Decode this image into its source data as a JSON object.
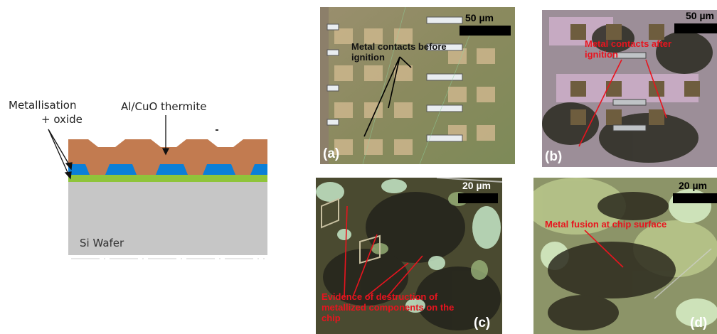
{
  "schematic": {
    "labels": {
      "metallisation": "Metallisation",
      "oxide": "+ oxide",
      "thermite": "Al/CuO thermite",
      "wafer": "Si Wafer"
    },
    "colors": {
      "thermite": "#c27b50",
      "metallisation": "#0b7fd8",
      "oxide": "#8fc43a",
      "wafer": "#c6c6c6"
    }
  },
  "panels": {
    "a": {
      "letter": "(a)",
      "scale": "50 µm",
      "annotation": "Metal contacts before ignition"
    },
    "b": {
      "letter": "(b)",
      "scale": "50 µm",
      "annotation": "Metal contacts after ignition"
    },
    "c": {
      "letter": "(c)",
      "scale": "20 µm",
      "annotation": "Evidence of destruction of metallized components on the chip"
    },
    "d": {
      "letter": "(d)",
      "scale": "20 µm",
      "annotation": "Metal fusion at chip surface"
    }
  }
}
